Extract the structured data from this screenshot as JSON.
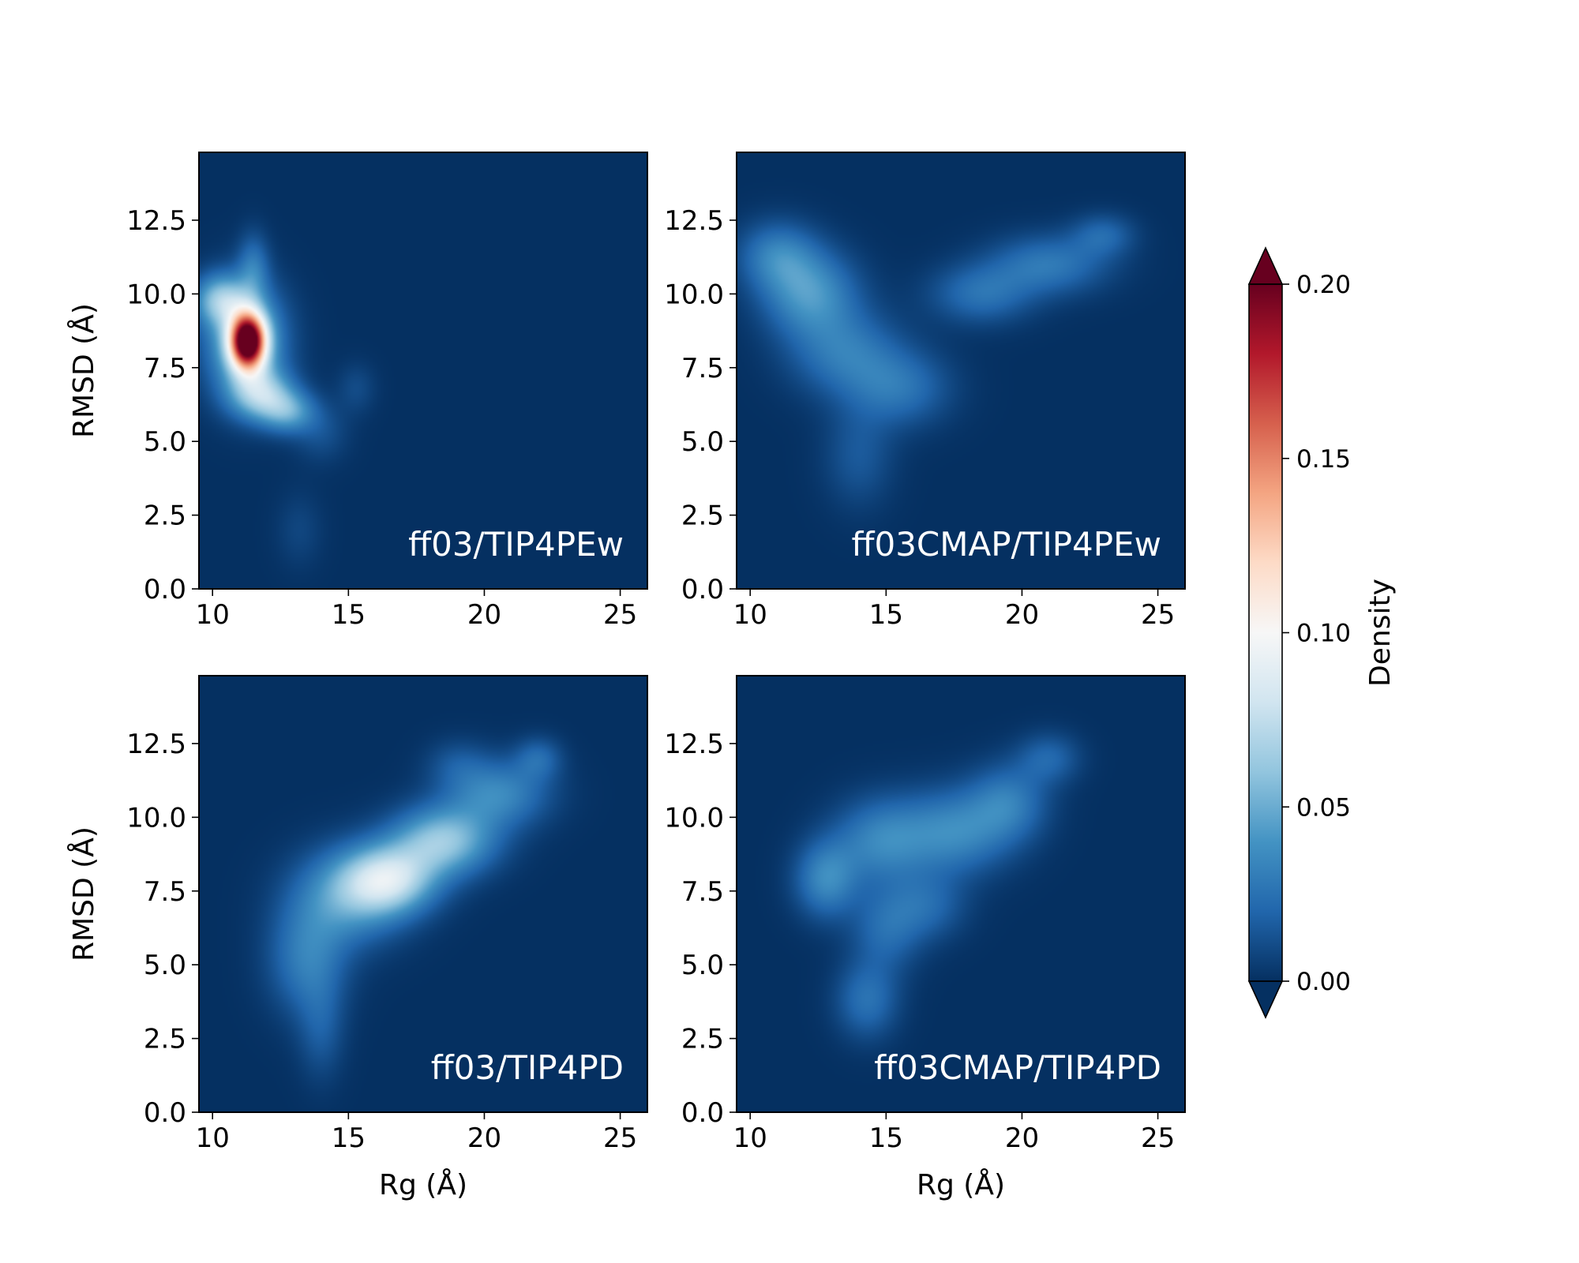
{
  "colors": {
    "background": "#08306b",
    "colormap": "RdBu_r",
    "colormap_stops": [
      "#053061",
      "#2166ac",
      "#4393c3",
      "#92c5de",
      "#d1e5f0",
      "#f7f7f7",
      "#fddbc7",
      "#f4a582",
      "#d6604d",
      "#b2182b",
      "#67001f"
    ],
    "under": "#053061",
    "over": "#67001f",
    "label_text": "#ffffff"
  },
  "chart_data": {
    "type": "heatmap",
    "layout": "2x2 grid with shared colorbar on the right",
    "x_ticks": [
      "10",
      "15",
      "20",
      "25"
    ],
    "y_ticks": [
      "0.0",
      "2.5",
      "5.0",
      "7.5",
      "10.0",
      "12.5"
    ],
    "xlim": [
      9.5,
      26
    ],
    "ylim": [
      0,
      14.8
    ],
    "colorbar": {
      "label": "Density",
      "range": [
        0,
        0.2
      ],
      "ticks": [
        "0.00",
        "0.05",
        "0.10",
        "0.15",
        "0.20"
      ],
      "extend": "both"
    },
    "panels": [
      {
        "label": "ff03/TIP4PEw",
        "ylabel": "RMSD (Å)",
        "xlabel": "",
        "blobs": [
          {
            "x": 11.3,
            "y": 8.4,
            "sx": 0.45,
            "sy": 0.65,
            "density": 0.19
          },
          {
            "x": 11.2,
            "y": 8.4,
            "sx": 1.0,
            "sy": 1.3,
            "density": 0.06
          },
          {
            "x": 10.3,
            "y": 9.8,
            "sx": 0.7,
            "sy": 0.6,
            "density": 0.05
          },
          {
            "x": 11.8,
            "y": 6.6,
            "sx": 0.8,
            "sy": 0.6,
            "density": 0.055
          },
          {
            "x": 12.8,
            "y": 6.0,
            "sx": 0.7,
            "sy": 0.5,
            "density": 0.04
          },
          {
            "x": 11.5,
            "y": 10.9,
            "sx": 0.4,
            "sy": 0.8,
            "density": 0.025
          },
          {
            "x": 14.0,
            "y": 5.3,
            "sx": 0.7,
            "sy": 0.7,
            "density": 0.012
          },
          {
            "x": 15.3,
            "y": 6.8,
            "sx": 0.5,
            "sy": 0.6,
            "density": 0.01
          },
          {
            "x": 13.2,
            "y": 2.0,
            "sx": 0.6,
            "sy": 0.9,
            "density": 0.008
          }
        ]
      },
      {
        "label": "ff03CMAP/TIP4PEw",
        "ylabel": "",
        "xlabel": "",
        "blobs": [
          {
            "x": 12.2,
            "y": 10.0,
            "sx": 1.2,
            "sy": 1.0,
            "density": 0.04
          },
          {
            "x": 11.0,
            "y": 11.3,
            "sx": 1.0,
            "sy": 0.8,
            "density": 0.03
          },
          {
            "x": 13.5,
            "y": 8.0,
            "sx": 1.4,
            "sy": 1.0,
            "density": 0.028
          },
          {
            "x": 15.5,
            "y": 6.8,
            "sx": 1.3,
            "sy": 0.9,
            "density": 0.025
          },
          {
            "x": 14.0,
            "y": 4.5,
            "sx": 0.9,
            "sy": 1.2,
            "density": 0.015
          },
          {
            "x": 18.5,
            "y": 10.0,
            "sx": 1.3,
            "sy": 0.7,
            "density": 0.025
          },
          {
            "x": 21.0,
            "y": 11.0,
            "sx": 1.5,
            "sy": 0.7,
            "density": 0.028
          },
          {
            "x": 23.0,
            "y": 12.0,
            "sx": 0.8,
            "sy": 0.5,
            "density": 0.02
          }
        ]
      },
      {
        "label": "ff03/TIP4PD",
        "ylabel": "RMSD (Å)",
        "xlabel": "Rg (Å)",
        "blobs": [
          {
            "x": 16.5,
            "y": 7.9,
            "sx": 1.2,
            "sy": 0.8,
            "density": 0.07
          },
          {
            "x": 18.5,
            "y": 9.2,
            "sx": 1.3,
            "sy": 0.8,
            "density": 0.06
          },
          {
            "x": 15.0,
            "y": 7.3,
            "sx": 1.4,
            "sy": 1.1,
            "density": 0.04
          },
          {
            "x": 20.5,
            "y": 10.8,
            "sx": 1.3,
            "sy": 0.8,
            "density": 0.035
          },
          {
            "x": 13.5,
            "y": 5.2,
            "sx": 1.0,
            "sy": 1.3,
            "density": 0.03
          },
          {
            "x": 14.0,
            "y": 2.8,
            "sx": 0.6,
            "sy": 1.2,
            "density": 0.015
          },
          {
            "x": 22.0,
            "y": 12.0,
            "sx": 0.6,
            "sy": 0.5,
            "density": 0.02
          },
          {
            "x": 19.0,
            "y": 11.8,
            "sx": 0.8,
            "sy": 0.6,
            "density": 0.012
          }
        ]
      },
      {
        "label": "ff03CMAP/TIP4PD",
        "ylabel": "",
        "xlabel": "Rg (Å)",
        "blobs": [
          {
            "x": 12.8,
            "y": 7.9,
            "sx": 0.8,
            "sy": 0.9,
            "density": 0.035
          },
          {
            "x": 14.8,
            "y": 9.2,
            "sx": 1.2,
            "sy": 1.0,
            "density": 0.032
          },
          {
            "x": 17.5,
            "y": 9.5,
            "sx": 1.4,
            "sy": 1.0,
            "density": 0.035
          },
          {
            "x": 19.5,
            "y": 10.5,
            "sx": 1.0,
            "sy": 0.9,
            "density": 0.028
          },
          {
            "x": 21.0,
            "y": 12.0,
            "sx": 0.8,
            "sy": 0.6,
            "density": 0.02
          },
          {
            "x": 15.0,
            "y": 6.2,
            "sx": 0.9,
            "sy": 1.0,
            "density": 0.022
          },
          {
            "x": 14.3,
            "y": 3.8,
            "sx": 0.8,
            "sy": 0.9,
            "density": 0.025
          },
          {
            "x": 16.5,
            "y": 7.0,
            "sx": 1.0,
            "sy": 0.8,
            "density": 0.02
          }
        ]
      }
    ]
  }
}
